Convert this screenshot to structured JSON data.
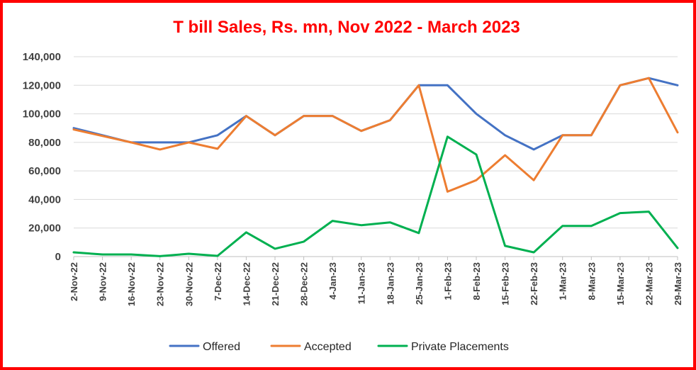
{
  "chart_data": {
    "type": "line",
    "title": "T bill Sales, Rs. mn, Nov 2022 - March 2023",
    "title_color": "#ff0000",
    "frame_color": "#ff0000",
    "xlabel": "",
    "ylabel": "",
    "ylim": [
      0,
      140000
    ],
    "yticks": [
      0,
      20000,
      40000,
      60000,
      80000,
      100000,
      120000,
      140000
    ],
    "ytick_labels": [
      "0",
      "20,000",
      "40,000",
      "60,000",
      "80,000",
      "100,000",
      "120,000",
      "140,000"
    ],
    "grid": true,
    "legend_position": "bottom",
    "categories": [
      "2-Nov-22",
      "9-Nov-22",
      "16-Nov-22",
      "23-Nov-22",
      "30-Nov-22",
      "7-Dec-22",
      "14-Dec-22",
      "21-Dec-22",
      "28-Dec-22",
      "4-Jan-23",
      "11-Jan-23",
      "18-Jan-23",
      "25-Jan-23",
      "1-Feb-23",
      "8-Feb-23",
      "15-Feb-23",
      "22-Feb-23",
      "1-Mar-23",
      "8-Mar-23",
      "15-Mar-23",
      "22-Mar-23",
      "29-Mar-23"
    ],
    "series": [
      {
        "name": "Offered",
        "color": "#4472c4",
        "values": [
          90000,
          85000,
          80000,
          80000,
          80000,
          85000,
          98500,
          85000,
          98500,
          98500,
          88000,
          95500,
          120000,
          120000,
          100000,
          85000,
          75000,
          85000,
          85000,
          120000,
          125000,
          120000
        ]
      },
      {
        "name": "Accepted",
        "color": "#ed7d31",
        "values": [
          89000,
          84500,
          80000,
          75000,
          80000,
          75500,
          98500,
          85000,
          98500,
          98500,
          88000,
          95500,
          120000,
          45500,
          53500,
          71000,
          53500,
          85000,
          85000,
          120000,
          125000,
          87000
        ]
      },
      {
        "name": "Private Placements",
        "color": "#00b050",
        "values": [
          3000,
          1500,
          1500,
          300,
          2000,
          500,
          17000,
          5500,
          10500,
          25000,
          22000,
          24000,
          16500,
          84000,
          71500,
          7500,
          3000,
          21500,
          21500,
          30500,
          31500,
          6000
        ]
      }
    ]
  }
}
